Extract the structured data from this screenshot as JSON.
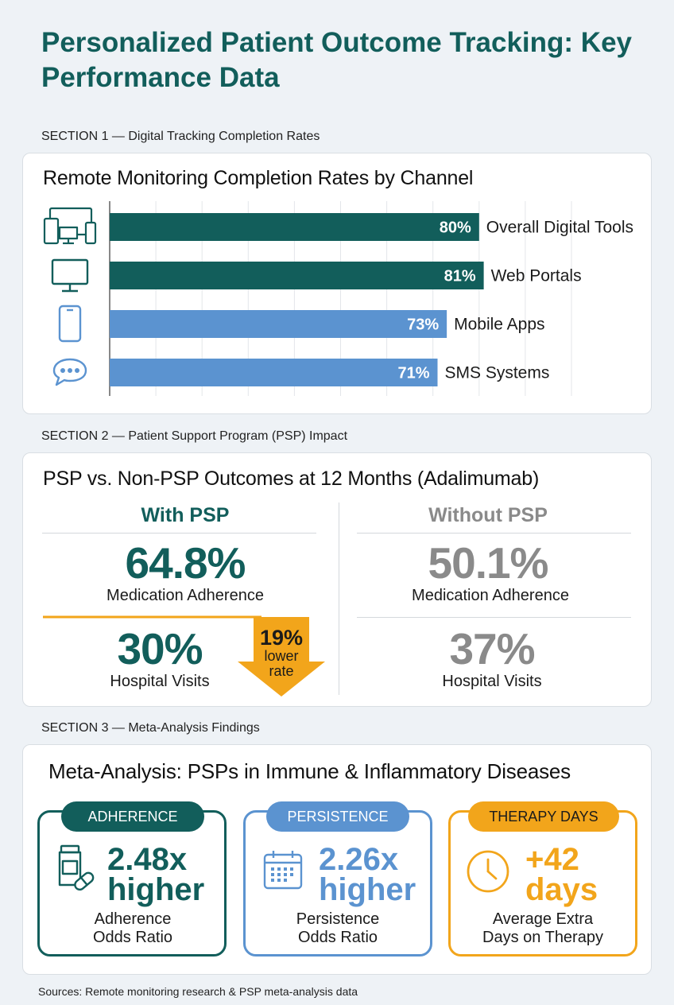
{
  "title": "Personalized Patient Outcome Tracking: Key Performance Data",
  "section1": {
    "label": "SECTION 1 — Digital Tracking Completion Rates",
    "card_title": "Remote Monitoring Completion Rates by Channel"
  },
  "section2": {
    "label": "SECTION 2 — Patient Support Program (PSP) Impact",
    "card_title": "PSP vs. Non-PSP Outcomes at 12 Months (Adalimumab)",
    "with_psp": {
      "heading": "With PSP",
      "adherence_value": "64.8%",
      "adherence_label": "Medication Adherence",
      "visits_value": "30%",
      "visits_label": "Hospital Visits"
    },
    "without_psp": {
      "heading": "Without PSP",
      "adherence_value": "50.1%",
      "adherence_label": "Medication Adherence",
      "visits_value": "37%",
      "visits_label": "Hospital Visits"
    },
    "callout": {
      "value": "19%",
      "line1": "lower",
      "line2": "rate"
    }
  },
  "section3": {
    "label": "SECTION 3 — Meta-Analysis Findings",
    "card_title": "Meta-Analysis: PSPs in Immune & Inflammatory Diseases",
    "boxes": [
      {
        "pill": "ADHERENCE",
        "line1": "2.48x",
        "line2": "higher",
        "label1": "Adherence",
        "label2": "Odds Ratio",
        "icon": "pill-bottle-icon",
        "color": "#125e5b"
      },
      {
        "pill": "PERSISTENCE",
        "line1": "2.26x",
        "line2": "higher",
        "label1": "Persistence",
        "label2": "Odds Ratio",
        "icon": "calendar-icon",
        "color": "#5b93d0"
      },
      {
        "pill": "THERAPY DAYS",
        "line1": "+42",
        "line2": "days",
        "label1": "Average Extra",
        "label2": "Days on Therapy",
        "icon": "clock-icon",
        "color": "#f2a51b"
      }
    ]
  },
  "sources": "Sources: Remote monitoring research & PSP meta-analysis data",
  "colors": {
    "teal": "#125e5b",
    "blue": "#5b93d0",
    "gray": "#8a8a8a",
    "orange": "#f2a51b"
  },
  "chart_data": {
    "type": "bar",
    "orientation": "horizontal",
    "title": "Remote Monitoring Completion Rates by Channel",
    "categories": [
      "Overall Digital Tools",
      "Web Portals",
      "Mobile Apps",
      "SMS Systems"
    ],
    "values": [
      80,
      81,
      73,
      71
    ],
    "value_labels": [
      "80%",
      "81%",
      "73%",
      "71%"
    ],
    "bar_colors": [
      "#125e5b",
      "#125e5b",
      "#5b93d0",
      "#5b93d0"
    ],
    "icons": [
      "devices-icon",
      "monitor-icon",
      "smartphone-icon",
      "chat-bubble-icon"
    ],
    "xlim": [
      0,
      100
    ],
    "grid": true
  }
}
